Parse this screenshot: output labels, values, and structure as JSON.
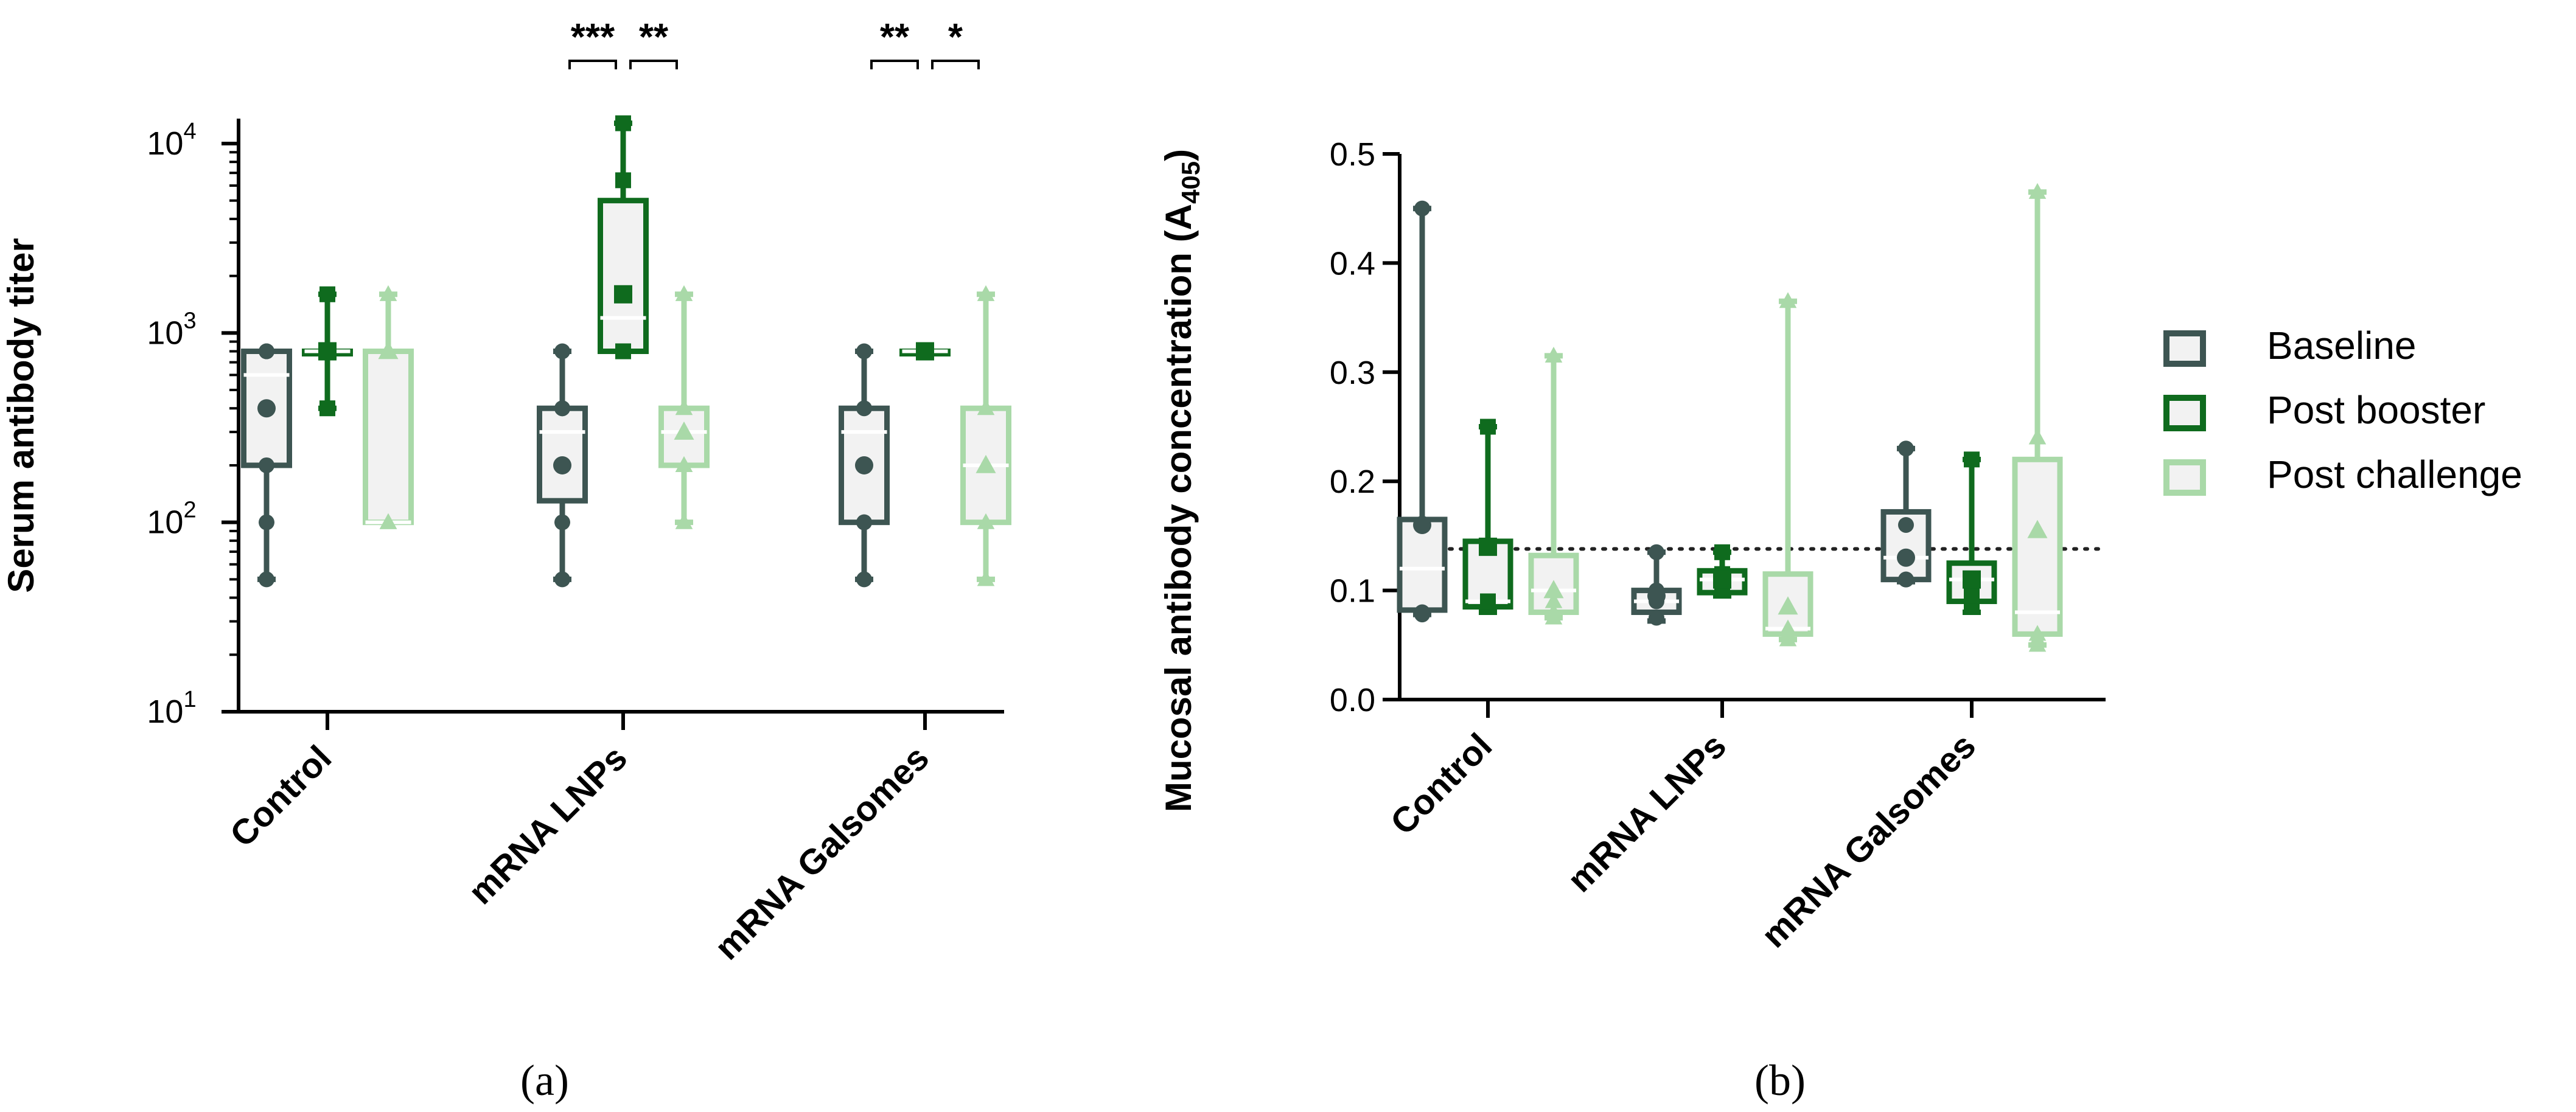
{
  "colors": {
    "Baseline": "#3d5552",
    "Post booster": "#0f6b1e",
    "Post challenge": "#a9d9a8",
    "box_fill": "#f2f2f2"
  },
  "chart_data": [
    {
      "panel": "(a)",
      "type": "box",
      "ylabel": "Serum antibody titer",
      "yscale": "log",
      "ylim": [
        10,
        15000
      ],
      "yticks": [
        {
          "v": 10,
          "base": "10",
          "exp": "1"
        },
        {
          "v": 100,
          "base": "10",
          "exp": "2"
        },
        {
          "v": 1000,
          "base": "10",
          "exp": "3"
        },
        {
          "v": 10000,
          "base": "10",
          "exp": "4"
        }
      ],
      "categories": [
        "Control",
        "mRNA LNPs",
        "mRNA Galsomes"
      ],
      "series": [
        {
          "name": "Baseline",
          "marker": "circle",
          "boxes": [
            {
              "min": 50,
              "q1": 200,
              "median": 600,
              "q3": 800,
              "max": 800,
              "mean": 400,
              "points": [
                50,
                100,
                200,
                800,
                800
              ]
            },
            {
              "min": 50,
              "q1": 130,
              "median": 300,
              "q3": 400,
              "max": 800,
              "mean": 200,
              "points": [
                50,
                100,
                400,
                400,
                800
              ]
            },
            {
              "min": 50,
              "q1": 100,
              "median": 300,
              "q3": 400,
              "max": 800,
              "mean": 200,
              "points": [
                50,
                100,
                100,
                400,
                800
              ]
            }
          ]
        },
        {
          "name": "Post booster",
          "marker": "square",
          "boxes": [
            {
              "min": 400,
              "q1": 800,
              "median": 800,
              "q3": 800,
              "max": 1600,
              "mean": 800,
              "points": [
                400,
                800,
                800,
                1600
              ]
            },
            {
              "min": 800,
              "q1": 800,
              "median": 1200,
              "q3": 5000,
              "max": 12800,
              "mean": 1600,
              "points": [
                800,
                800,
                6400,
                12800
              ]
            },
            {
              "min": 800,
              "q1": 800,
              "median": 800,
              "q3": 800,
              "max": 800,
              "mean": 800,
              "points": [
                800,
                800,
                800
              ]
            }
          ]
        },
        {
          "name": "Post challenge",
          "marker": "triangle",
          "boxes": [
            {
              "min": 100,
              "q1": 100,
              "median": 100,
              "q3": 800,
              "max": 1600,
              "mean": 800,
              "points": [
                100,
                100,
                800,
                1600
              ]
            },
            {
              "min": 100,
              "q1": 200,
              "median": 300,
              "q3": 400,
              "max": 1600,
              "mean": 300,
              "points": [
                100,
                200,
                200,
                400,
                1600
              ]
            },
            {
              "min": 50,
              "q1": 100,
              "median": 200,
              "q3": 400,
              "max": 1600,
              "mean": 200,
              "points": [
                50,
                100,
                400,
                1600
              ]
            }
          ]
        }
      ],
      "annotations": [
        {
          "group": 1,
          "from": 0,
          "to": 1,
          "label": "***"
        },
        {
          "group": 1,
          "from": 1,
          "to": 2,
          "label": "**"
        },
        {
          "group": 2,
          "from": 0,
          "to": 1,
          "label": "**"
        },
        {
          "group": 2,
          "from": 1,
          "to": 2,
          "label": "*"
        }
      ]
    },
    {
      "panel": "(b)",
      "type": "box",
      "ylabel": "Mucosal antibody concentration (A",
      "ylabel_sub": "405",
      "ylabel_end": ")",
      "ylim": [
        0.0,
        0.5
      ],
      "yticks": [
        "0.0",
        "0.1",
        "0.2",
        "0.3",
        "0.4",
        "0.5"
      ],
      "categories": [
        "Control",
        "mRNA LNPs",
        "mRNA Galsomes"
      ],
      "reference_line": 0.138,
      "series": [
        {
          "name": "Baseline",
          "marker": "circle",
          "boxes": [
            {
              "min": 0.078,
              "q1": 0.082,
              "median": 0.12,
              "q3": 0.165,
              "max": 0.45,
              "mean": 0.16,
              "points": [
                0.078,
                0.08,
                0.16,
                0.45
              ]
            },
            {
              "min": 0.072,
              "q1": 0.08,
              "median": 0.09,
              "q3": 0.1,
              "max": 0.135,
              "mean": 0.095,
              "points": [
                0.075,
                0.09,
                0.1,
                0.135
              ]
            },
            {
              "min": 0.108,
              "q1": 0.11,
              "median": 0.13,
              "q3": 0.172,
              "max": 0.23,
              "mean": 0.13,
              "points": [
                0.11,
                0.11,
                0.16,
                0.23
              ]
            }
          ]
        },
        {
          "name": "Post booster",
          "marker": "square",
          "boxes": [
            {
              "min": 0.08,
              "q1": 0.085,
              "median": 0.09,
              "q3": 0.145,
              "max": 0.25,
              "mean": 0.14,
              "points": [
                0.085,
                0.09,
                0.14,
                0.25
              ]
            },
            {
              "min": 0.095,
              "q1": 0.098,
              "median": 0.11,
              "q3": 0.118,
              "max": 0.135,
              "mean": 0.11,
              "points": [
                0.1,
                0.11,
                0.115,
                0.135
              ]
            },
            {
              "min": 0.08,
              "q1": 0.09,
              "median": 0.11,
              "q3": 0.125,
              "max": 0.22,
              "mean": 0.11,
              "points": [
                0.085,
                0.095,
                0.11,
                0.22
              ]
            }
          ]
        },
        {
          "name": "Post challenge",
          "marker": "triangle",
          "boxes": [
            {
              "min": 0.075,
              "q1": 0.08,
              "median": 0.1,
              "q3": 0.132,
              "max": 0.315,
              "mean": 0.1,
              "points": [
                0.075,
                0.08,
                0.09,
                0.315
              ]
            },
            {
              "min": 0.055,
              "q1": 0.06,
              "median": 0.065,
              "q3": 0.115,
              "max": 0.365,
              "mean": 0.085,
              "points": [
                0.055,
                0.06,
                0.065,
                0.365
              ]
            },
            {
              "min": 0.05,
              "q1": 0.06,
              "median": 0.08,
              "q3": 0.22,
              "max": 0.465,
              "mean": 0.155,
              "points": [
                0.05,
                0.055,
                0.06,
                0.24,
                0.465
              ]
            }
          ]
        }
      ]
    }
  ]
}
